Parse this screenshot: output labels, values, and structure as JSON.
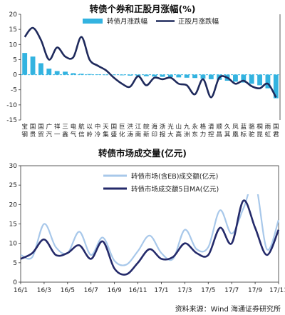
{
  "chart_data": [
    {
      "type": "bar",
      "title": "转债个券和正股月涨幅(%)",
      "unit": "%",
      "ylim": [
        -15,
        20
      ],
      "yticks": [
        -15,
        -10,
        -5,
        0,
        5,
        10,
        15,
        20
      ],
      "grid": false,
      "legend_placement": "top",
      "categories": [
        "宝钢",
        "国贵",
        "国贸",
        "广汽",
        "祥一",
        "三鑫",
        "电气",
        "航信",
        "以岭",
        "中冷",
        "天集",
        "国盛",
        "巨化",
        "洪涛",
        "江南",
        "皖新",
        "海印",
        "浙报",
        "光大",
        "山高",
        "九洲",
        "永东",
        "格力",
        "清控",
        "顺昌",
        "久其",
        "凤凰",
        "蓝标",
        "骆驼",
        "桐昆",
        "雨虹",
        "国君"
      ],
      "series": [
        {
          "name": "转债月涨跌幅",
          "type": "bar",
          "color": "#33b3e0",
          "values": [
            7.2,
            6.0,
            3.8,
            2.0,
            1.2,
            1.0,
            0.5,
            0.3,
            0.2,
            0.1,
            0.0,
            -0.1,
            -0.2,
            -0.3,
            -0.4,
            -0.5,
            -0.6,
            -0.7,
            -0.8,
            -0.9,
            -1.0,
            -1.1,
            -1.3,
            -1.5,
            -1.7,
            -2.0,
            -2.3,
            -2.6,
            -3.0,
            -3.5,
            -4.5,
            -7.8
          ]
        },
        {
          "name": "正股月涨跌幅",
          "type": "line",
          "color": "#1f2a5c",
          "values": [
            12.5,
            15.5,
            11.5,
            5.0,
            9.0,
            6.0,
            5.8,
            12.5,
            5.0,
            3.0,
            1.5,
            -1.0,
            -3.0,
            -4.0,
            -0.5,
            -3.5,
            -1.0,
            -1.5,
            -1.0,
            -3.0,
            -3.5,
            -6.5,
            -1.5,
            -7.5,
            -1.0,
            -1.0,
            -3.0,
            -2.0,
            -3.8,
            -4.5,
            -3.0,
            -7.5
          ]
        }
      ]
    },
    {
      "type": "line",
      "title": "转债市场成交量(亿元)",
      "unit": "亿元",
      "ylim": [
        0,
        30
      ],
      "yticks": [
        0,
        5,
        10,
        15,
        20,
        25,
        30
      ],
      "grid": false,
      "legend_placement": "top",
      "x": [
        "16/1",
        "16/2",
        "16/3",
        "16/4",
        "16/5",
        "16/6",
        "16/7",
        "16/8",
        "16/9",
        "16/10",
        "16/11",
        "16/12",
        "17/1",
        "17/2",
        "17/3",
        "17/4",
        "17/5",
        "17/6",
        "17/7",
        "17/8",
        "17/9",
        "17/10",
        "17/11"
      ],
      "xticks": [
        "16/1",
        "16/3",
        "16/5",
        "16/7",
        "16/9",
        "16/11",
        "17/1",
        "17/3",
        "17/5",
        "17/7",
        "17/9",
        "17/11"
      ],
      "series": [
        {
          "name": "转债市场(含EB)成交额(亿元)",
          "color": "#a8c8ea",
          "values": [
            7.0,
            6.5,
            15.0,
            9.0,
            7.5,
            13.0,
            7.0,
            11.5,
            5.5,
            4.5,
            8.0,
            12.0,
            7.5,
            6.0,
            13.5,
            8.5,
            9.0,
            18.5,
            12.5,
            19.0,
            25.5,
            8.5,
            16.0
          ]
        },
        {
          "name": "转债市场成交额5日MA(亿元)",
          "color": "#242a6a",
          "values": [
            6.0,
            7.5,
            11.0,
            7.0,
            7.5,
            9.5,
            6.0,
            10.5,
            3.5,
            2.0,
            5.0,
            8.5,
            6.0,
            6.5,
            10.0,
            7.5,
            7.0,
            14.0,
            10.0,
            21.0,
            14.0,
            7.0,
            13.5
          ]
        }
      ]
    }
  ],
  "source": "资料来源：Wind 海通证券研究所"
}
